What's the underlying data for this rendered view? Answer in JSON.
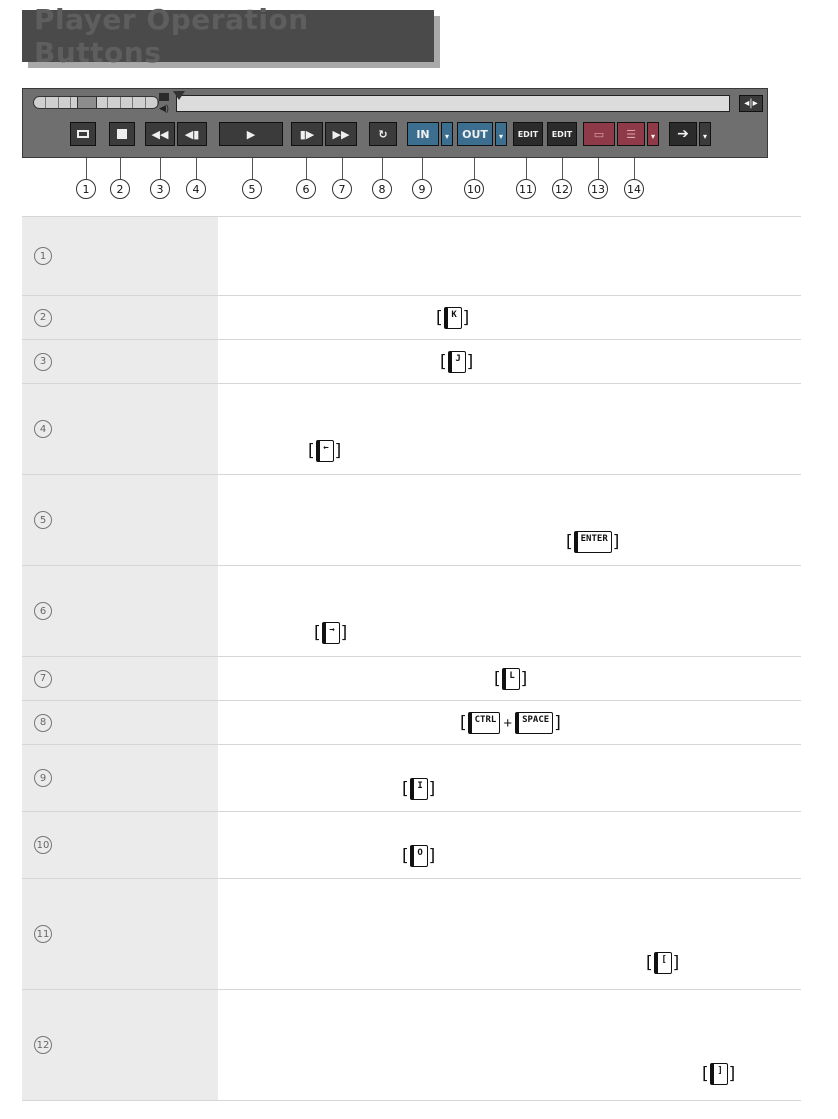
{
  "title": "Player Operation Buttons",
  "player": {
    "zoom_label": "◂|▸",
    "buttons": [
      {
        "id": 1,
        "label": ""
      },
      {
        "id": 2,
        "label": ""
      },
      {
        "id": 3,
        "label": "◀◀"
      },
      {
        "id": 4,
        "label": "◀▮"
      },
      {
        "id": 5,
        "label": "▶"
      },
      {
        "id": 6,
        "label": "▮▶"
      },
      {
        "id": 7,
        "label": "▶▶"
      },
      {
        "id": 8,
        "label": "↻"
      },
      {
        "id": 9,
        "label": "IN"
      },
      {
        "id": 10,
        "label": "OUT"
      },
      {
        "id": 11,
        "label": "EDIT"
      },
      {
        "id": 12,
        "label": "EDIT"
      },
      {
        "id": 13,
        "label": "▭"
      },
      {
        "id": 14,
        "label": "☰"
      }
    ],
    "dropdown_glyph": "▾"
  },
  "numbers": [
    "1",
    "2",
    "3",
    "4",
    "5",
    "6",
    "7",
    "8",
    "9",
    "10",
    "11",
    "12",
    "13",
    "14"
  ],
  "rows": [
    {
      "num": "1",
      "keys": []
    },
    {
      "num": "2",
      "keys": [
        "K"
      ]
    },
    {
      "num": "3",
      "keys": [
        "J"
      ]
    },
    {
      "num": "4",
      "keys": [
        "←"
      ]
    },
    {
      "num": "5",
      "keys": [
        "ENTER"
      ]
    },
    {
      "num": "6",
      "keys": [
        "→"
      ]
    },
    {
      "num": "7",
      "keys": [
        "L"
      ]
    },
    {
      "num": "8",
      "keys": [
        "CTRL",
        "+",
        "SPACE"
      ]
    },
    {
      "num": "9",
      "keys": [
        "I"
      ]
    },
    {
      "num": "10",
      "keys": [
        "O"
      ]
    },
    {
      "num": "11",
      "keys": [
        "["
      ]
    },
    {
      "num": "12",
      "keys": [
        "]"
      ]
    }
  ],
  "bracket_open": "[",
  "bracket_close": "]"
}
